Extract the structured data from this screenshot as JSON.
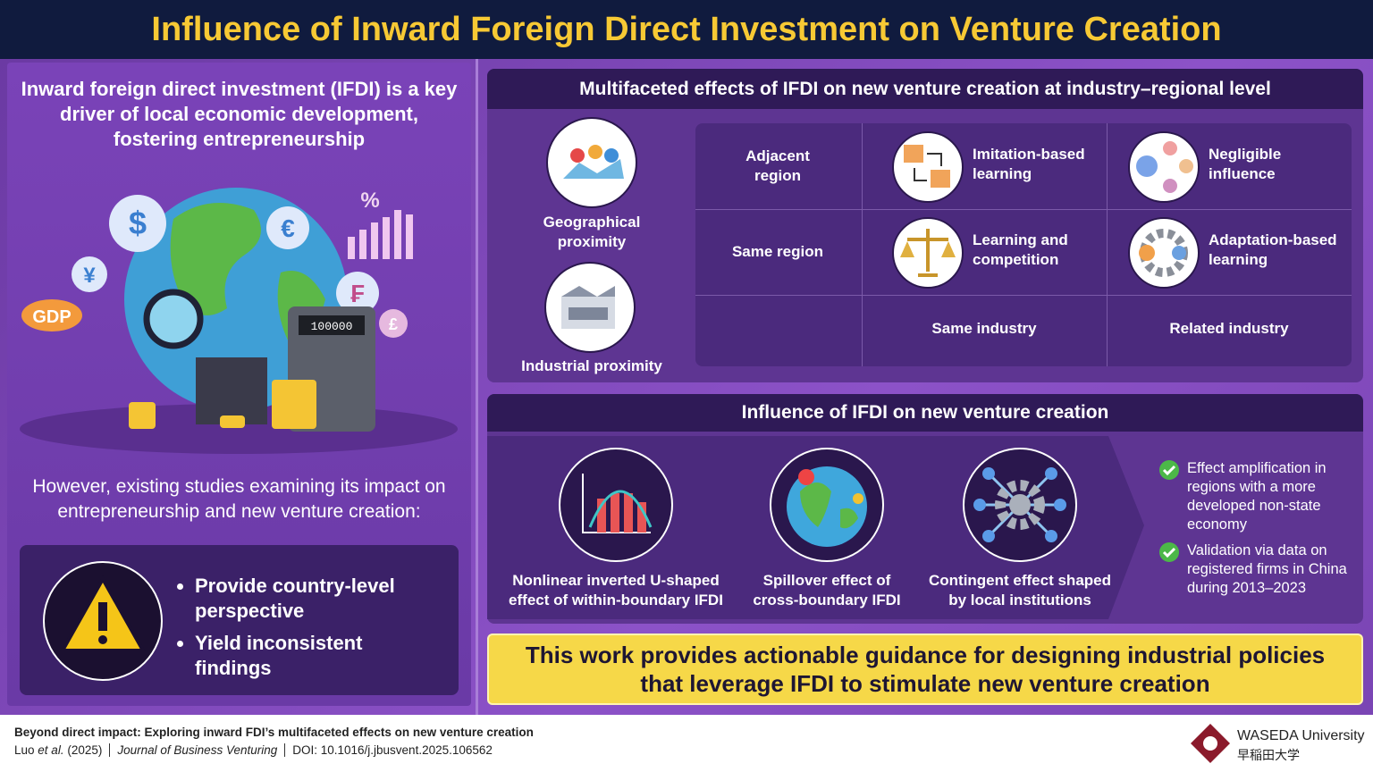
{
  "title": "Influence of Inward Foreign Direct Investment on Venture Creation",
  "intro": "Inward foreign direct investment (IFDI) is a key driver of local economic development, fostering entrepreneurship",
  "illustration": {
    "gdp": "GDP",
    "percent": "%",
    "dollar": "$",
    "euro": "€",
    "yen": "¥",
    "franc": "₣",
    "pound": "£",
    "calculator": "100000"
  },
  "concern": {
    "text": "However, existing studies examining its impact on entrepreneurship and new venture creation:",
    "bullets": [
      "Provide country-level perspective",
      "Yield inconsistent findings"
    ]
  },
  "effects": {
    "heading": "Multifaceted effects of IFDI on new venture creation at industry–regional level",
    "proximity": [
      "Geographical proximity",
      "Industrial proximity"
    ],
    "rows": [
      "Adjacent region",
      "Same region"
    ],
    "columns": [
      "Same industry",
      "Related industry"
    ],
    "cells": [
      [
        "Imitation-based learning",
        "Negligible influence"
      ],
      [
        "Learning and competition",
        "Adaptation-based learning"
      ]
    ]
  },
  "influence": {
    "heading": "Influence of IFDI on new venture creation",
    "items": [
      "Nonlinear inverted U-shaped effect of within-boundary IFDI",
      "Spillover effect of cross-boundary IFDI",
      "Contingent effect shaped by local institutions"
    ],
    "findings": [
      "Effect amplification in regions with a more developed non-state economy",
      "Validation via data on registered firms in China during 2013–2023"
    ]
  },
  "conclusion": "This work provides actionable guidance for designing industrial policies that leverage IFDI to stimulate new venture creation",
  "footer": {
    "paper": "Beyond direct impact: Exploring inward FDI’s multifaceted effects on new venture creation",
    "author": "Luo",
    "etal": "et al.",
    "year": "(2025)",
    "journal": "Journal of Business Venturing",
    "doi": "DOI: 10.1016/j.jbusvent.2025.106562",
    "logo": "WASEDA University",
    "logo_jp": "早稲田大学"
  }
}
